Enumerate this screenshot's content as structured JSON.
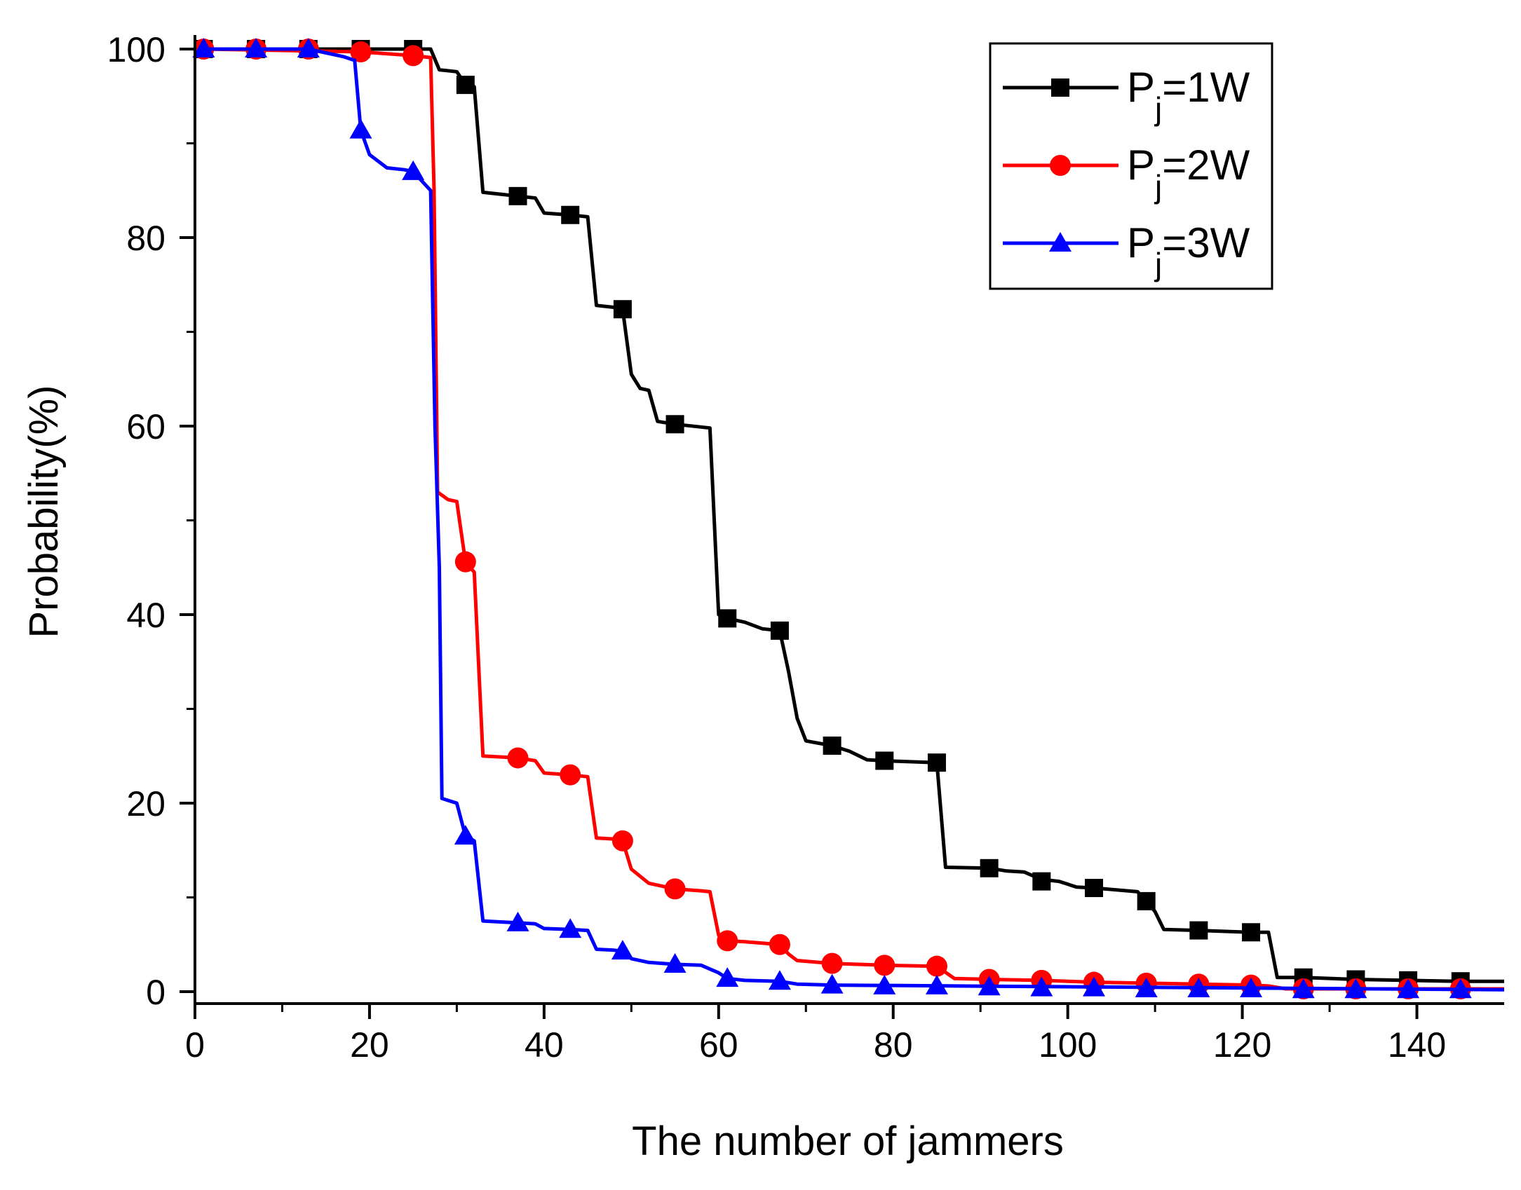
{
  "chart_data": {
    "type": "line",
    "title": "",
    "xlabel": "The number of jammers",
    "ylabel": "Probability(%)",
    "xlim": [
      0,
      150
    ],
    "ylim": [
      -1,
      100
    ],
    "xticks": [
      0,
      20,
      40,
      60,
      80,
      100,
      120,
      140
    ],
    "yticks": [
      0,
      20,
      40,
      60,
      80,
      100
    ],
    "grid": false,
    "legend_position": "top-right",
    "series": [
      {
        "name": "Pj=1W",
        "legend_base": "P",
        "legend_sub": "j",
        "legend_rest": "=1W",
        "color": "#000000",
        "marker": "square",
        "line": [
          [
            1,
            100
          ],
          [
            25,
            100
          ],
          [
            27,
            100
          ],
          [
            28,
            97.8
          ],
          [
            30,
            97.6
          ],
          [
            31,
            96.2
          ],
          [
            32,
            96
          ],
          [
            33,
            84.8
          ],
          [
            35,
            84.6
          ],
          [
            37,
            84.4
          ],
          [
            39,
            84.2
          ],
          [
            40,
            82.6
          ],
          [
            43,
            82.4
          ],
          [
            45,
            82.2
          ],
          [
            46,
            72.8
          ],
          [
            48,
            72.6
          ],
          [
            49,
            72.4
          ],
          [
            50,
            65.5
          ],
          [
            51,
            64
          ],
          [
            52,
            63.8
          ],
          [
            53,
            60.5
          ],
          [
            55,
            60.2
          ],
          [
            59,
            59.8
          ],
          [
            60,
            40
          ],
          [
            61,
            39.6
          ],
          [
            63,
            39.2
          ],
          [
            65,
            38.5
          ],
          [
            67,
            38.3
          ],
          [
            68,
            34
          ],
          [
            69,
            29
          ],
          [
            70,
            26.6
          ],
          [
            73,
            26.1
          ],
          [
            75,
            25.5
          ],
          [
            77,
            24.6
          ],
          [
            79,
            24.5
          ],
          [
            85,
            24.3
          ],
          [
            86,
            13.2
          ],
          [
            91,
            13.1
          ],
          [
            93,
            12.8
          ],
          [
            95,
            12.7
          ],
          [
            97,
            11.9
          ],
          [
            99,
            11.7
          ],
          [
            101,
            11.1
          ],
          [
            103,
            11
          ],
          [
            108,
            10.6
          ],
          [
            109,
            9.6
          ],
          [
            110,
            8.5
          ],
          [
            111,
            6.6
          ],
          [
            115,
            6.5
          ],
          [
            121,
            6.3
          ],
          [
            123,
            6.3
          ],
          [
            124,
            1.5
          ],
          [
            127,
            1.5
          ],
          [
            133,
            1.3
          ],
          [
            139,
            1.2
          ],
          [
            145,
            1.1
          ],
          [
            150,
            1.1
          ]
        ],
        "markers": [
          [
            1,
            100
          ],
          [
            7,
            100
          ],
          [
            13,
            100
          ],
          [
            19,
            100
          ],
          [
            25,
            100
          ],
          [
            31,
            96.2
          ],
          [
            37,
            84.4
          ],
          [
            43,
            82.4
          ],
          [
            49,
            72.4
          ],
          [
            55,
            60.2
          ],
          [
            61,
            39.6
          ],
          [
            67,
            38.3
          ],
          [
            73,
            26.1
          ],
          [
            79,
            24.5
          ],
          [
            85,
            24.3
          ],
          [
            91,
            13.1
          ],
          [
            97,
            11.7
          ],
          [
            103,
            11
          ],
          [
            109,
            9.6
          ],
          [
            115,
            6.5
          ],
          [
            121,
            6.3
          ],
          [
            127,
            1.5
          ],
          [
            133,
            1.3
          ],
          [
            139,
            1.2
          ],
          [
            145,
            1.1
          ]
        ]
      },
      {
        "name": "Pj=2W",
        "legend_base": "P",
        "legend_sub": "j",
        "legend_rest": "=2W",
        "color": "#ff0000",
        "marker": "circle",
        "line": [
          [
            1,
            100
          ],
          [
            19,
            99.7
          ],
          [
            25,
            99.3
          ],
          [
            27,
            99.1
          ],
          [
            27.4,
            85
          ],
          [
            27.8,
            53
          ],
          [
            29,
            52.2
          ],
          [
            30,
            52
          ],
          [
            31,
            45.6
          ],
          [
            32,
            44.5
          ],
          [
            33,
            25
          ],
          [
            37,
            24.8
          ],
          [
            39,
            24.5
          ],
          [
            40,
            23.2
          ],
          [
            43,
            23
          ],
          [
            45,
            22.8
          ],
          [
            46,
            16.3
          ],
          [
            48,
            16.2
          ],
          [
            49,
            16
          ],
          [
            50,
            13
          ],
          [
            52,
            11.5
          ],
          [
            55,
            10.9
          ],
          [
            58,
            10.7
          ],
          [
            59,
            10.6
          ],
          [
            60,
            6
          ],
          [
            61,
            5.4
          ],
          [
            63,
            5.3
          ],
          [
            67,
            5
          ],
          [
            68,
            4
          ],
          [
            69,
            3.3
          ],
          [
            73,
            3
          ],
          [
            79,
            2.8
          ],
          [
            85,
            2.7
          ],
          [
            87,
            1.4
          ],
          [
            91,
            1.3
          ],
          [
            97,
            1.2
          ],
          [
            103,
            1
          ],
          [
            109,
            0.9
          ],
          [
            115,
            0.8
          ],
          [
            121,
            0.7
          ],
          [
            123,
            0.6
          ],
          [
            125,
            0.3
          ],
          [
            127,
            0.3
          ],
          [
            150,
            0.3
          ]
        ],
        "markers": [
          [
            1,
            100
          ],
          [
            7,
            100
          ],
          [
            13,
            100
          ],
          [
            19,
            99.7
          ],
          [
            25,
            99.3
          ],
          [
            31,
            45.6
          ],
          [
            37,
            24.8
          ],
          [
            43,
            23
          ],
          [
            49,
            16
          ],
          [
            55,
            10.9
          ],
          [
            61,
            5.4
          ],
          [
            67,
            5
          ],
          [
            73,
            3
          ],
          [
            79,
            2.8
          ],
          [
            85,
            2.7
          ],
          [
            91,
            1.3
          ],
          [
            97,
            1.2
          ],
          [
            103,
            1
          ],
          [
            109,
            0.9
          ],
          [
            115,
            0.8
          ],
          [
            121,
            0.7
          ],
          [
            127,
            0.3
          ],
          [
            133,
            0.3
          ],
          [
            139,
            0.3
          ],
          [
            145,
            0.3
          ]
        ]
      },
      {
        "name": "Pj=3W",
        "legend_base": "P",
        "legend_sub": "j",
        "legend_rest": "=3W",
        "color": "#0000ff",
        "marker": "triangle",
        "line": [
          [
            1,
            100
          ],
          [
            13,
            100
          ],
          [
            17,
            99.2
          ],
          [
            18.3,
            98.8
          ],
          [
            19,
            91.4
          ],
          [
            20,
            88.8
          ],
          [
            22,
            87.4
          ],
          [
            24,
            87.2
          ],
          [
            25,
            87
          ],
          [
            26,
            86
          ],
          [
            27,
            85
          ],
          [
            27.5,
            60
          ],
          [
            28,
            45
          ],
          [
            28.3,
            20.5
          ],
          [
            30,
            20
          ],
          [
            31,
            16.5
          ],
          [
            32,
            16
          ],
          [
            33,
            7.5
          ],
          [
            35,
            7.4
          ],
          [
            37,
            7.3
          ],
          [
            39,
            7.2
          ],
          [
            40,
            6.7
          ],
          [
            43,
            6.6
          ],
          [
            45,
            6.5
          ],
          [
            46,
            4.5
          ],
          [
            48,
            4.4
          ],
          [
            49,
            4.3
          ],
          [
            50,
            3.5
          ],
          [
            52,
            3.1
          ],
          [
            55,
            2.9
          ],
          [
            58,
            2.8
          ],
          [
            60,
            2
          ],
          [
            61,
            1.4
          ],
          [
            63,
            1.2
          ],
          [
            67,
            1.1
          ],
          [
            69,
            0.8
          ],
          [
            73,
            0.7
          ],
          [
            150,
            0.2
          ]
        ],
        "markers": [
          [
            1,
            100
          ],
          [
            7,
            100
          ],
          [
            13,
            100
          ],
          [
            19,
            91.4
          ],
          [
            25,
            87
          ],
          [
            31,
            16.5
          ],
          [
            37,
            7.3
          ],
          [
            43,
            6.6
          ],
          [
            49,
            4.3
          ],
          [
            55,
            2.9
          ],
          [
            61,
            1.4
          ],
          [
            67,
            1.1
          ],
          [
            73,
            0.7
          ],
          [
            79,
            0.6
          ],
          [
            85,
            0.6
          ],
          [
            91,
            0.5
          ],
          [
            97,
            0.4
          ],
          [
            103,
            0.4
          ],
          [
            109,
            0.3
          ],
          [
            115,
            0.3
          ],
          [
            121,
            0.3
          ],
          [
            127,
            0.2
          ],
          [
            133,
            0.2
          ],
          [
            139,
            0.2
          ],
          [
            145,
            0.2
          ]
        ]
      }
    ]
  }
}
